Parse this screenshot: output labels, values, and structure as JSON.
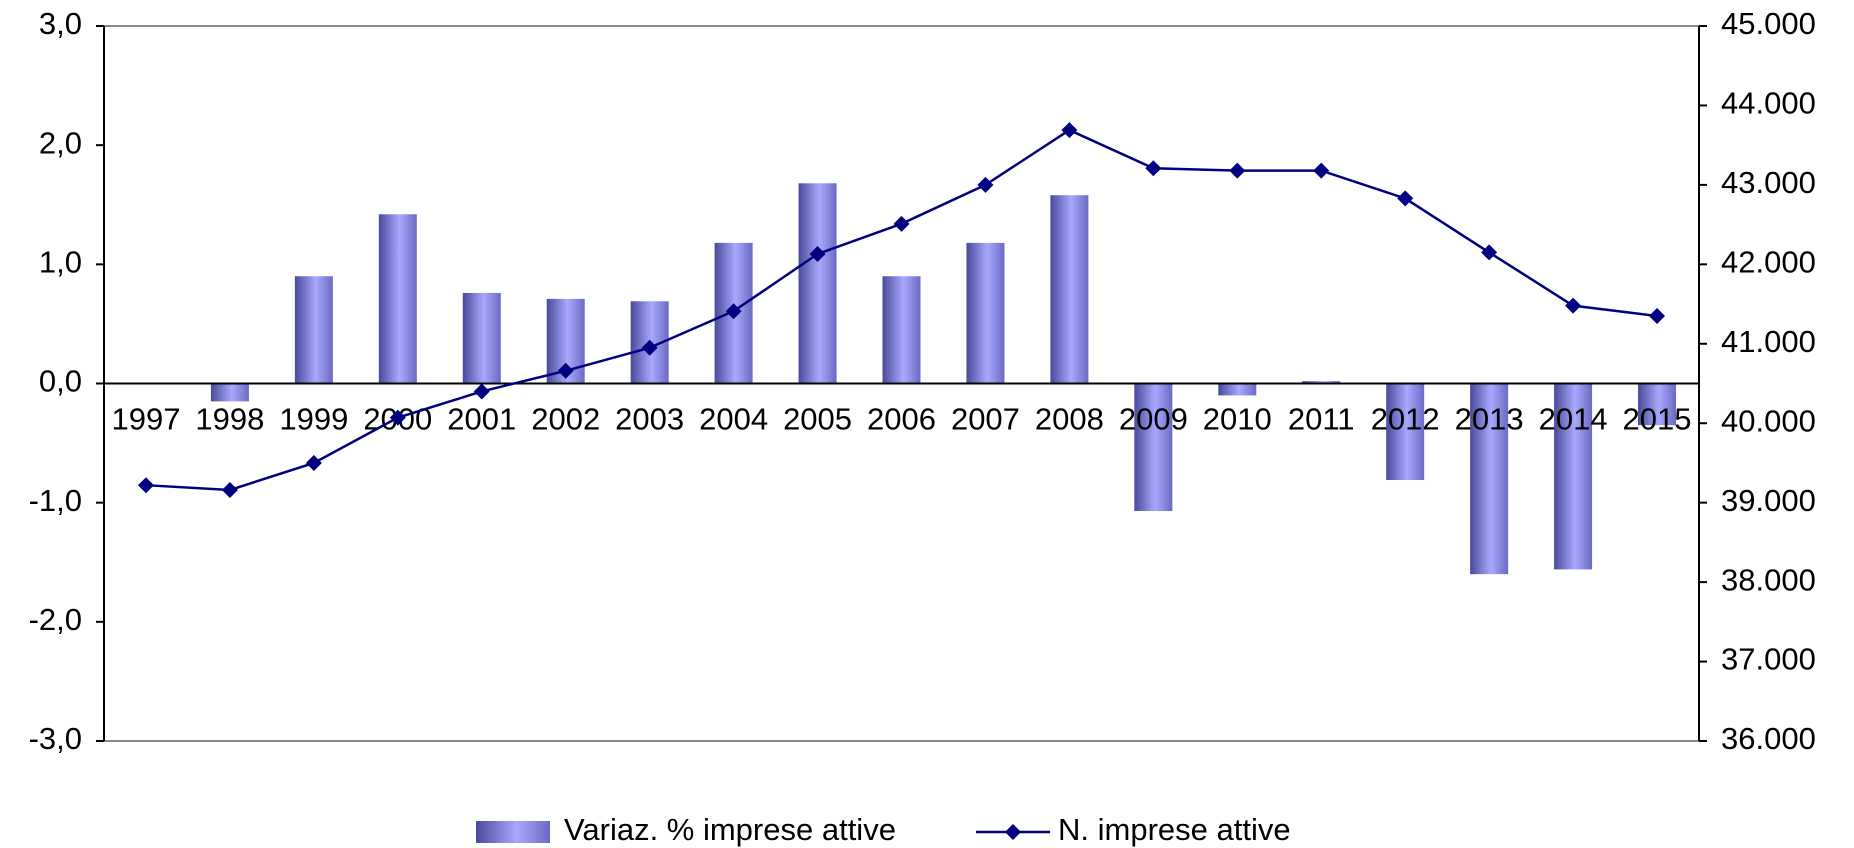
{
  "chart_data": {
    "type": "bar_line",
    "categories": [
      "1997",
      "1998",
      "1999",
      "2000",
      "2001",
      "2002",
      "2003",
      "2004",
      "2005",
      "2006",
      "2007",
      "2008",
      "2009",
      "2010",
      "2011",
      "2012",
      "2013",
      "2014",
      "2015"
    ],
    "series": [
      {
        "name": "Variaz. % imprese attive",
        "type": "bar",
        "color": "#9999ff",
        "axis": "y",
        "values": [
          0,
          -0.15,
          0.9,
          1.42,
          0.76,
          0.71,
          0.69,
          1.18,
          1.68,
          0.9,
          1.18,
          1.58,
          -1.07,
          -0.1,
          0.02,
          -0.81,
          -1.6,
          -1.56,
          -0.35
        ]
      },
      {
        "name": "N. imprese attive",
        "type": "line",
        "color": "#000080",
        "axis": "y2",
        "values": [
          39220,
          39160,
          39500,
          40070,
          40400,
          40660,
          40950,
          41410,
          42130,
          42510,
          43000,
          43690,
          43210,
          43180,
          43180,
          42830,
          42150,
          41480,
          41350
        ]
      }
    ],
    "ylim": [
      -3,
      3
    ],
    "yticks": [
      {
        "value": -3,
        "label": "-3,0"
      },
      {
        "value": -2,
        "label": "-2,0"
      },
      {
        "value": -1,
        "label": "-1,0"
      },
      {
        "value": 0,
        "label": "0,0"
      },
      {
        "value": 1,
        "label": "1,0"
      },
      {
        "value": 2,
        "label": "2,0"
      },
      {
        "value": 3,
        "label": "3,0"
      }
    ],
    "y2lim": [
      36000,
      45000
    ],
    "y2ticks": [
      {
        "value": 36000,
        "label": "36.000"
      },
      {
        "value": 37000,
        "label": "37.000"
      },
      {
        "value": 38000,
        "label": "38.000"
      },
      {
        "value": 39000,
        "label": "39.000"
      },
      {
        "value": 40000,
        "label": "40.000"
      },
      {
        "value": 41000,
        "label": "41.000"
      },
      {
        "value": 42000,
        "label": "42.000"
      },
      {
        "value": 43000,
        "label": "43.000"
      },
      {
        "value": 44000,
        "label": "44.000"
      },
      {
        "value": 45000,
        "label": "45.000"
      }
    ],
    "legend": "bottom"
  }
}
